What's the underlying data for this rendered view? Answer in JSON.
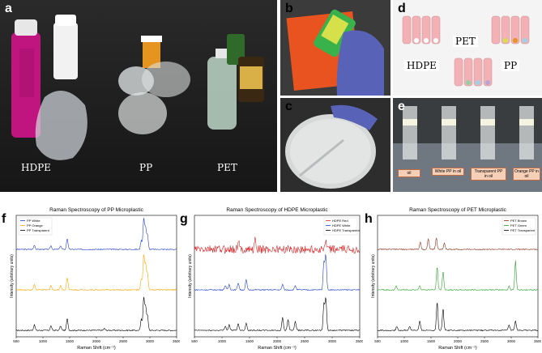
{
  "panels": {
    "a": {
      "label": "a",
      "items": [
        "HDPE",
        "PP",
        "PET"
      ]
    },
    "b": {
      "label": "b"
    },
    "c": {
      "label": "c"
    },
    "d": {
      "label": "d",
      "groups": [
        "PET",
        "HDPE",
        "PP"
      ]
    },
    "e": {
      "label": "e",
      "vials": [
        "oil",
        "White PP in oil",
        "Transparent PP in oil",
        "Orange PP in oil"
      ]
    },
    "f": {
      "label": "f"
    },
    "g": {
      "label": "g"
    },
    "h": {
      "label": "h"
    }
  },
  "colors": {
    "red": "#d62728",
    "blue": "#1f3fcf",
    "orange": "#ffa500",
    "black": "#000000",
    "green": "#2ca02c",
    "brown": "#8b2e16"
  },
  "chart_data": [
    {
      "type": "line",
      "title": "Raman Spectroscopy of PP Microplastic",
      "xlabel": "Raman Shift (cm⁻¹)",
      "ylabel": "Intensity (arbitrary units)",
      "xlim": [
        500,
        3500
      ],
      "xticks": [
        "500",
        "1000",
        "1500",
        "2000",
        "2500",
        "3000",
        "3500"
      ],
      "legend": "top-left",
      "series": [
        {
          "name": "PP White",
          "color": "#1f3fcf",
          "offset": 2,
          "peaks": [
            [
              840,
              0.12
            ],
            [
              1150,
              0.1
            ],
            [
              1330,
              0.1
            ],
            [
              1455,
              0.3
            ],
            [
              2840,
              0.25
            ],
            [
              2885,
              0.85
            ],
            [
              2920,
              0.6
            ],
            [
              2955,
              0.4
            ]
          ]
        },
        {
          "name": "PP Orange",
          "color": "#ffa500",
          "offset": 1,
          "peaks": [
            [
              840,
              0.15
            ],
            [
              1150,
              0.12
            ],
            [
              1330,
              0.12
            ],
            [
              1455,
              0.35
            ],
            [
              2840,
              0.3
            ],
            [
              2885,
              0.95
            ],
            [
              2920,
              0.7
            ],
            [
              2955,
              0.45
            ]
          ]
        },
        {
          "name": "PP Transparent",
          "color": "#000000",
          "offset": 0,
          "peaks": [
            [
              840,
              0.15
            ],
            [
              1150,
              0.12
            ],
            [
              1330,
              0.12
            ],
            [
              1455,
              0.32
            ],
            [
              2150,
              0.05
            ],
            [
              2840,
              0.3
            ],
            [
              2885,
              0.9
            ],
            [
              2920,
              0.65
            ],
            [
              2955,
              0.4
            ]
          ]
        }
      ]
    },
    {
      "type": "line",
      "title": "Raman Spectroscopy of HDPE Microplastic",
      "xlabel": "Raman Shift (cm⁻¹)",
      "ylabel": "Intensity (arbitrary units)",
      "xlim": [
        500,
        3500
      ],
      "xticks": [
        "500",
        "1000",
        "1500",
        "2000",
        "2500",
        "3000",
        "3500"
      ],
      "legend": "top-right",
      "series": [
        {
          "name": "HDPE Red",
          "color": "#d62728",
          "offset": 2,
          "noise": 0.22,
          "peaks": [
            [
              1300,
              0.2
            ],
            [
              1600,
              0.25
            ],
            [
              2880,
              0.2
            ]
          ]
        },
        {
          "name": "HDPE White",
          "color": "#1f3fcf",
          "offset": 1,
          "peaks": [
            [
              1060,
              0.12
            ],
            [
              1130,
              0.15
            ],
            [
              1295,
              0.2
            ],
            [
              1440,
              0.28
            ],
            [
              2100,
              0.15
            ],
            [
              2330,
              0.12
            ],
            [
              2850,
              0.75
            ],
            [
              2885,
              0.95
            ]
          ]
        },
        {
          "name": "HDPE Transparent",
          "color": "#000000",
          "offset": 0,
          "peaks": [
            [
              1060,
              0.12
            ],
            [
              1130,
              0.15
            ],
            [
              1295,
              0.18
            ],
            [
              1440,
              0.2
            ],
            [
              2100,
              0.35
            ],
            [
              2200,
              0.3
            ],
            [
              2330,
              0.25
            ],
            [
              2850,
              0.7
            ],
            [
              2885,
              0.9
            ]
          ]
        }
      ]
    },
    {
      "type": "line",
      "title": "Raman Spectroscopy of PET Microplastic",
      "xlabel": "Raman Shift (cm⁻¹)",
      "ylabel": "Intensity (arbitrary units)",
      "xlim": [
        500,
        3500
      ],
      "xticks": [
        "500",
        "1000",
        "1500",
        "2000",
        "2500",
        "3000",
        "3500"
      ],
      "legend": "top-right",
      "series": [
        {
          "name": "PET Brown",
          "color": "#8b2e16",
          "offset": 2,
          "peaks": [
            [
              1300,
              0.2
            ],
            [
              1450,
              0.3
            ],
            [
              1600,
              0.32
            ],
            [
              1750,
              0.18
            ]
          ]
        },
        {
          "name": "PET Green",
          "color": "#2ca02c",
          "offset": 1,
          "peaks": [
            [
              850,
              0.1
            ],
            [
              1290,
              0.12
            ],
            [
              1615,
              0.65
            ],
            [
              1725,
              0.5
            ],
            [
              2960,
              0.1
            ],
            [
              3080,
              0.8
            ]
          ]
        },
        {
          "name": "PET Transparent",
          "color": "#000000",
          "offset": 0,
          "peaks": [
            [
              860,
              0.1
            ],
            [
              1100,
              0.1
            ],
            [
              1290,
              0.25
            ],
            [
              1615,
              0.8
            ],
            [
              1725,
              0.6
            ],
            [
              2960,
              0.15
            ],
            [
              3080,
              0.25
            ]
          ]
        }
      ]
    }
  ]
}
